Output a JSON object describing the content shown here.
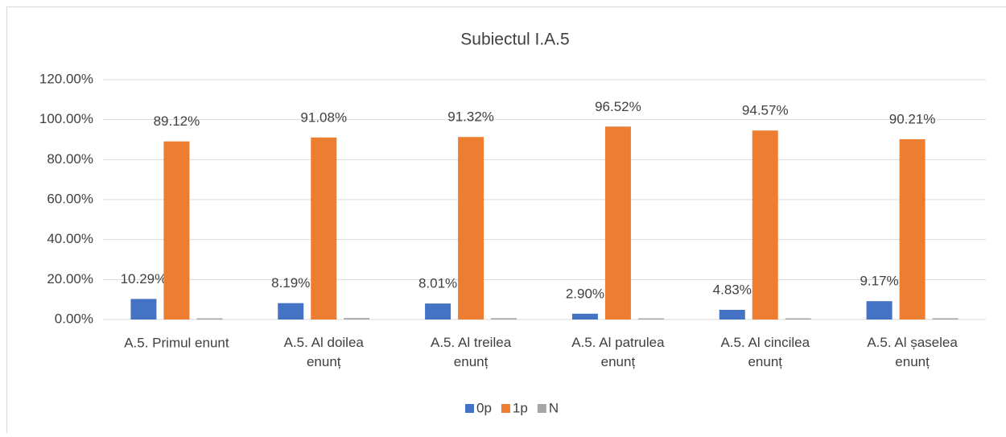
{
  "chart_data": {
    "type": "bar",
    "title": "Subiectul I.A.5",
    "categories": [
      "A.5. Primul enunt",
      "A.5. Al doilea enunț",
      "A.5. Al treilea enunț",
      "A.5. Al patrulea enunț",
      "A.5. Al cincilea enunț",
      "A.5. Al șaselea enunț"
    ],
    "series": [
      {
        "name": "0p",
        "color": "#4472c4",
        "values": [
          10.29,
          8.19,
          8.01,
          2.9,
          4.83,
          9.17
        ],
        "value_labels": [
          "10.29%",
          "8.19%",
          "8.01%",
          "2.90%",
          "4.83%",
          "9.17%"
        ]
      },
      {
        "name": "1p",
        "color": "#ed7d31",
        "values": [
          89.12,
          91.08,
          91.32,
          96.52,
          94.57,
          90.21
        ],
        "value_labels": [
          "89.12%",
          "91.08%",
          "91.32%",
          "96.52%",
          "94.57%",
          "90.21%"
        ]
      },
      {
        "name": "N",
        "color": "#a5a5a5",
        "values": [
          0.59,
          0.73,
          0.67,
          0.58,
          0.6,
          0.62
        ]
      }
    ],
    "ylim": [
      0,
      120
    ],
    "yticks": [
      {
        "value": 0,
        "label": "0.00%"
      },
      {
        "value": 20,
        "label": "20.00%"
      },
      {
        "value": 40,
        "label": "40.00%"
      },
      {
        "value": 60,
        "label": "60.00%"
      },
      {
        "value": 80,
        "label": "80.00%"
      },
      {
        "value": 100,
        "label": "100.00%"
      },
      {
        "value": 120,
        "label": "120.00%"
      }
    ],
    "grid": true,
    "legend": "bottom"
  }
}
